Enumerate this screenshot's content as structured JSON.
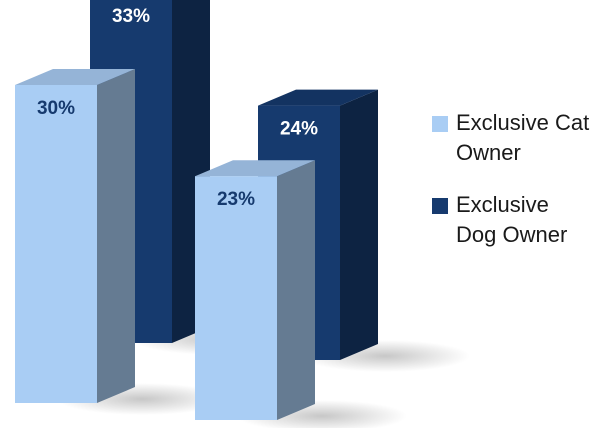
{
  "chart_data": {
    "type": "bar",
    "categories": [
      "",
      ""
    ],
    "series": [
      {
        "name": "Exclusive Cat Owner",
        "values": [
          30,
          23
        ],
        "labels": [
          "30%",
          "23%"
        ],
        "color": "#a9cdf4"
      },
      {
        "name": "Exclusive Dog Owner",
        "values": [
          33,
          24
        ],
        "labels": [
          "33%",
          "24%"
        ],
        "color": "#163a6e"
      }
    ],
    "title": "",
    "xlabel": "",
    "ylabel": "",
    "ylim": [
      0,
      34
    ],
    "grid": false,
    "legend": "right",
    "legend_lines": [
      [
        "Exclusive Cat",
        "Owner"
      ],
      [
        "Exclusive",
        "Dog Owner"
      ]
    ]
  }
}
